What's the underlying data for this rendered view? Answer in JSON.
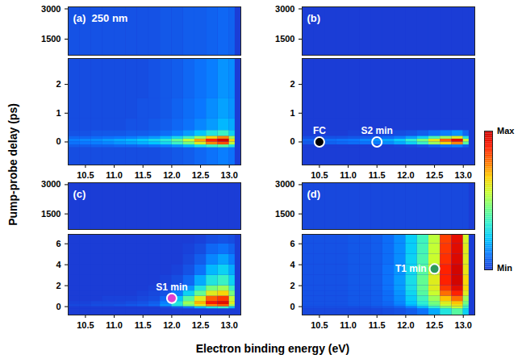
{
  "chart_data": {
    "type": "heatmap",
    "x_label": "Electron binding energy (eV)",
    "y_label": "Pump-probe delay (ps)",
    "xlim": [
      10.2,
      13.2
    ],
    "xticks": [
      10.5,
      {
        "value": 11,
        "label": "11.0"
      },
      11.5,
      {
        "value": 12,
        "label": "12.0"
      },
      12.5,
      {
        "value": 13,
        "label": "13.0"
      }
    ],
    "x_edges": [
      10.2,
      10.4,
      10.6,
      10.8,
      11.0,
      11.2,
      11.4,
      11.6,
      11.8,
      12.0,
      12.2,
      12.4,
      12.6,
      12.8,
      13.0,
      13.1
    ],
    "colorbar": {
      "range": [
        0,
        1
      ],
      "min_label": "Min",
      "max_label": "Max"
    },
    "panels": [
      {
        "label": "(a)",
        "annotation": "250 nm",
        "upper": {
          "ylim": [
            700,
            3100
          ],
          "yticks": [
            1500,
            3000
          ],
          "y_edges": [
            700,
            3100
          ],
          "cells": [
            [
              0.04,
              0.04,
              0.04,
              0.04,
              0.04,
              0.04,
              0.04,
              0.04,
              0.05,
              0.05,
              0.06,
              0.06,
              0.07,
              0.08,
              0.07
            ]
          ]
        },
        "lower": {
          "ylim": [
            -0.8,
            2.9
          ],
          "yticks": [
            0,
            1,
            2
          ],
          "y_edges": [
            -0.8,
            -0.2,
            -0.1,
            0,
            0.1,
            0.2,
            0.4,
            0.8,
            1.5,
            2.9
          ],
          "cells": [
            [
              0.03,
              0.03,
              0.03,
              0.03,
              0.03,
              0.03,
              0.03,
              0.03,
              0.04,
              0.05,
              0.06,
              0.08,
              0.1,
              0.12,
              0.1
            ],
            [
              0.06,
              0.06,
              0.07,
              0.07,
              0.08,
              0.08,
              0.09,
              0.1,
              0.12,
              0.15,
              0.2,
              0.28,
              0.35,
              0.4,
              0.3
            ],
            [
              0.1,
              0.11,
              0.12,
              0.13,
              0.15,
              0.17,
              0.19,
              0.22,
              0.27,
              0.35,
              0.45,
              0.6,
              0.75,
              0.82,
              0.55
            ],
            [
              0.12,
              0.13,
              0.14,
              0.16,
              0.18,
              0.2,
              0.23,
              0.27,
              0.32,
              0.42,
              0.55,
              0.72,
              0.88,
              0.98,
              0.65
            ],
            [
              0.08,
              0.08,
              0.09,
              0.1,
              0.11,
              0.12,
              0.14,
              0.16,
              0.2,
              0.27,
              0.36,
              0.5,
              0.65,
              0.75,
              0.5
            ],
            [
              0.04,
              0.04,
              0.05,
              0.05,
              0.05,
              0.06,
              0.06,
              0.07,
              0.09,
              0.12,
              0.16,
              0.22,
              0.3,
              0.35,
              0.25
            ],
            [
              0.03,
              0.03,
              0.03,
              0.03,
              0.03,
              0.04,
              0.04,
              0.05,
              0.06,
              0.08,
              0.1,
              0.13,
              0.16,
              0.2,
              0.18
            ],
            [
              0.03,
              0.03,
              0.03,
              0.03,
              0.03,
              0.03,
              0.04,
              0.04,
              0.05,
              0.07,
              0.09,
              0.11,
              0.14,
              0.17,
              0.15
            ],
            [
              0.03,
              0.03,
              0.03,
              0.03,
              0.03,
              0.03,
              0.03,
              0.04,
              0.05,
              0.06,
              0.08,
              0.1,
              0.12,
              0.15,
              0.14
            ]
          ]
        },
        "points": []
      },
      {
        "label": "(b)",
        "upper": {
          "ylim": [
            700,
            3100
          ],
          "yticks": [
            1500,
            3000
          ],
          "y_edges": [
            700,
            3100
          ],
          "cells": [
            [
              0,
              0,
              0,
              0,
              0,
              0,
              0,
              0,
              0,
              0,
              0,
              0,
              0,
              0,
              0
            ]
          ]
        },
        "lower": {
          "ylim": [
            -0.8,
            2.9
          ],
          "yticks": [
            0,
            1,
            2
          ],
          "y_edges": [
            -0.8,
            -0.2,
            -0.1,
            0,
            0.1,
            0.2,
            0.4,
            0.8,
            1.5,
            2.9
          ],
          "cells": [
            [
              0,
              0,
              0,
              0,
              0,
              0,
              0,
              0,
              0,
              0,
              0,
              0,
              0,
              0,
              0
            ],
            [
              0,
              0,
              0,
              0,
              0,
              0,
              0,
              0,
              0.01,
              0.02,
              0.04,
              0.07,
              0.1,
              0.12,
              0.06
            ],
            [
              0.05,
              0.06,
              0.07,
              0.08,
              0.09,
              0.1,
              0.12,
              0.14,
              0.18,
              0.25,
              0.35,
              0.5,
              0.65,
              0.75,
              0.4
            ],
            [
              0.07,
              0.08,
              0.09,
              0.1,
              0.11,
              0.13,
              0.15,
              0.18,
              0.24,
              0.33,
              0.45,
              0.62,
              0.8,
              0.95,
              0.55
            ],
            [
              0.03,
              0.03,
              0.04,
              0.04,
              0.05,
              0.06,
              0.07,
              0.09,
              0.12,
              0.17,
              0.25,
              0.38,
              0.5,
              0.6,
              0.3
            ],
            [
              0,
              0,
              0,
              0,
              0.01,
              0.01,
              0.01,
              0.02,
              0.03,
              0.04,
              0.06,
              0.09,
              0.12,
              0.15,
              0.08
            ],
            [
              0,
              0,
              0,
              0,
              0,
              0,
              0,
              0,
              0,
              0,
              0,
              0,
              0,
              0,
              0
            ],
            [
              0,
              0,
              0,
              0,
              0,
              0,
              0,
              0,
              0,
              0,
              0,
              0,
              0,
              0,
              0
            ],
            [
              0,
              0,
              0,
              0,
              0,
              0,
              0,
              0,
              0,
              0,
              0,
              0,
              0,
              0,
              0
            ]
          ]
        },
        "points": [
          {
            "name": "FC",
            "x": 10.5,
            "y": 0,
            "color": "black",
            "marker": "circle"
          },
          {
            "name": "S2 min",
            "x": 11.5,
            "y": 0,
            "color": "white",
            "marker": "open circle"
          }
        ]
      },
      {
        "label": "(c)",
        "upper": {
          "ylim": [
            700,
            3100
          ],
          "yticks": [
            1500,
            3000
          ],
          "y_edges": [
            700,
            3100
          ],
          "cells": [
            [
              0,
              0,
              0,
              0,
              0,
              0,
              0,
              0,
              0,
              0,
              0,
              0,
              0,
              0,
              0
            ]
          ]
        },
        "lower": {
          "ylim": [
            -0.8,
            6.9
          ],
          "yticks": [
            0,
            2,
            4,
            6
          ],
          "y_edges": [
            -0.8,
            -0.2,
            0,
            0.2,
            0.5,
            1,
            1.5,
            2,
            3,
            4,
            5,
            6,
            6.9
          ],
          "cells": [
            [
              0,
              0,
              0,
              0,
              0,
              0,
              0,
              0,
              0,
              0,
              0,
              0,
              0,
              0,
              0
            ],
            [
              0,
              0,
              0,
              0,
              0,
              0,
              0,
              0,
              0.02,
              0.05,
              0.1,
              0.2,
              0.3,
              0.35,
              0.2
            ],
            [
              0.02,
              0.02,
              0.03,
              0.03,
              0.04,
              0.05,
              0.06,
              0.08,
              0.15,
              0.3,
              0.45,
              0.6,
              0.75,
              0.8,
              0.5
            ],
            [
              0.01,
              0.01,
              0.02,
              0.02,
              0.02,
              0.03,
              0.04,
              0.06,
              0.12,
              0.3,
              0.5,
              0.7,
              0.9,
              0.95,
              0.6
            ],
            [
              0,
              0,
              0,
              0.01,
              0.01,
              0.01,
              0.02,
              0.03,
              0.08,
              0.22,
              0.4,
              0.6,
              0.8,
              0.85,
              0.55
            ],
            [
              0,
              0,
              0,
              0,
              0,
              0,
              0.01,
              0.02,
              0.04,
              0.12,
              0.25,
              0.42,
              0.6,
              0.65,
              0.45
            ],
            [
              0,
              0,
              0,
              0,
              0,
              0,
              0,
              0.01,
              0.02,
              0.06,
              0.15,
              0.3,
              0.45,
              0.5,
              0.35
            ],
            [
              0,
              0,
              0,
              0,
              0,
              0,
              0,
              0,
              0.01,
              0.03,
              0.08,
              0.18,
              0.3,
              0.35,
              0.25
            ],
            [
              0,
              0,
              0,
              0,
              0,
              0,
              0,
              0,
              0,
              0.01,
              0.04,
              0.1,
              0.2,
              0.25,
              0.18
            ],
            [
              0,
              0,
              0,
              0,
              0,
              0,
              0,
              0,
              0,
              0,
              0.02,
              0.06,
              0.13,
              0.17,
              0.12
            ],
            [
              0,
              0,
              0,
              0,
              0,
              0,
              0,
              0,
              0,
              0,
              0.01,
              0.03,
              0.08,
              0.1,
              0.07
            ],
            [
              0,
              0,
              0,
              0,
              0,
              0,
              0,
              0,
              0,
              0,
              0,
              0.01,
              0.03,
              0.04,
              0.03
            ]
          ]
        },
        "points": [
          {
            "name": "S1 min",
            "x": 12.0,
            "y": 0.8,
            "color": "#e040d0",
            "marker": "circle"
          }
        ]
      },
      {
        "label": "(d)",
        "upper": {
          "ylim": [
            700,
            3100
          ],
          "yticks": [
            1500,
            3000
          ],
          "y_edges": [
            700,
            3100
          ],
          "cells": [
            [
              0.02,
              0.02,
              0.02,
              0.02,
              0.02,
              0.02,
              0.02,
              0.02,
              0.02,
              0.02,
              0.02,
              0.02,
              0.02,
              0.02,
              0.02
            ]
          ]
        },
        "lower": {
          "ylim": [
            -0.8,
            6.9
          ],
          "yticks": [
            0,
            2,
            4,
            6
          ],
          "y_edges": [
            -0.8,
            -0.2,
            0,
            0.2,
            0.5,
            1,
            1.5,
            2,
            3,
            4,
            5,
            6,
            6.9
          ],
          "cells": [
            [
              0.02,
              0.02,
              0.02,
              0.02,
              0.02,
              0.02,
              0.02,
              0.03,
              0.04,
              0.06,
              0.1,
              0.18,
              0.3,
              0.4,
              0.25
            ],
            [
              0.03,
              0.03,
              0.03,
              0.03,
              0.03,
              0.03,
              0.04,
              0.05,
              0.07,
              0.12,
              0.2,
              0.32,
              0.45,
              0.55,
              0.35
            ],
            [
              0.04,
              0.04,
              0.04,
              0.04,
              0.05,
              0.05,
              0.06,
              0.08,
              0.12,
              0.2,
              0.3,
              0.42,
              0.55,
              0.62,
              0.4
            ],
            [
              0.04,
              0.04,
              0.04,
              0.04,
              0.05,
              0.05,
              0.06,
              0.08,
              0.13,
              0.22,
              0.33,
              0.45,
              0.6,
              0.68,
              0.45
            ],
            [
              0.04,
              0.04,
              0.04,
              0.04,
              0.05,
              0.05,
              0.06,
              0.09,
              0.14,
              0.24,
              0.36,
              0.5,
              0.68,
              0.78,
              0.5
            ],
            [
              0.04,
              0.04,
              0.04,
              0.04,
              0.05,
              0.05,
              0.06,
              0.09,
              0.15,
              0.26,
              0.4,
              0.56,
              0.78,
              0.88,
              0.6
            ],
            [
              0.04,
              0.04,
              0.04,
              0.04,
              0.05,
              0.05,
              0.06,
              0.1,
              0.16,
              0.28,
              0.42,
              0.6,
              0.85,
              0.95,
              0.65
            ],
            [
              0.04,
              0.04,
              0.04,
              0.04,
              0.05,
              0.05,
              0.06,
              0.1,
              0.16,
              0.28,
              0.42,
              0.6,
              0.88,
              0.98,
              0.65
            ],
            [
              0.04,
              0.04,
              0.04,
              0.04,
              0.05,
              0.05,
              0.06,
              0.1,
              0.15,
              0.26,
              0.4,
              0.58,
              0.88,
              0.98,
              0.62
            ],
            [
              0.04,
              0.04,
              0.04,
              0.04,
              0.05,
              0.05,
              0.06,
              0.09,
              0.14,
              0.25,
              0.38,
              0.56,
              0.86,
              0.96,
              0.6
            ],
            [
              0.04,
              0.04,
              0.04,
              0.04,
              0.05,
              0.05,
              0.06,
              0.09,
              0.14,
              0.24,
              0.37,
              0.55,
              0.85,
              0.95,
              0.6
            ],
            [
              0.04,
              0.04,
              0.04,
              0.04,
              0.05,
              0.05,
              0.06,
              0.09,
              0.14,
              0.24,
              0.36,
              0.54,
              0.84,
              0.94,
              0.58
            ]
          ]
        },
        "points": [
          {
            "name": "T1 min",
            "x": 12.5,
            "y": 3.6,
            "color": "#2e9a5a",
            "marker": "circle"
          }
        ]
      }
    ]
  }
}
